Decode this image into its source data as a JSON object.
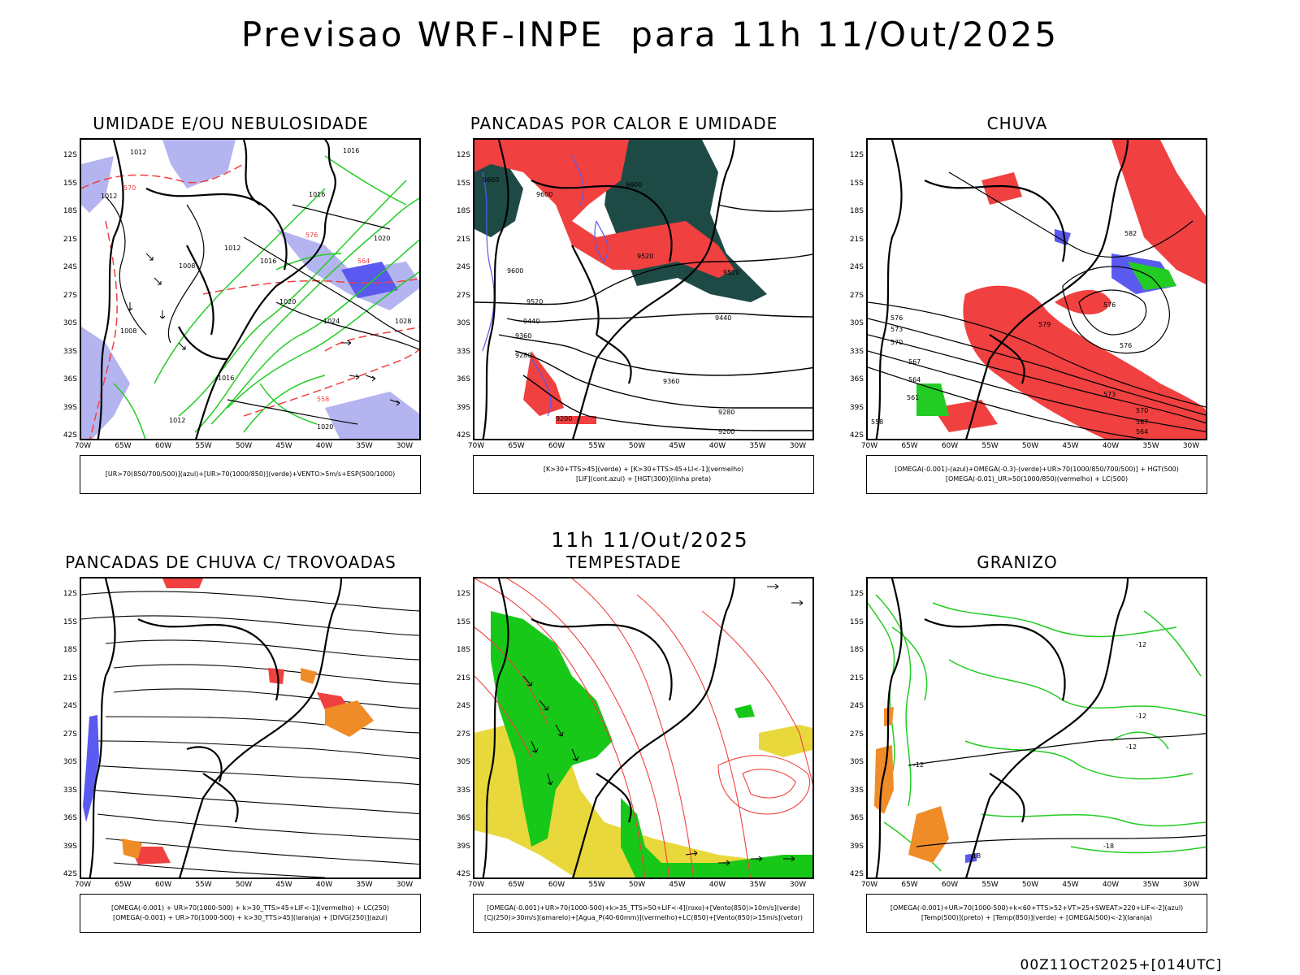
{
  "title": "Previsao WRF-INPE  para 11h 11/Out/2025",
  "mid_label": "11h 11/Out/2025",
  "footer": "00Z11OCT2025+[014UTC]",
  "axes": {
    "lat": [
      "12S",
      "15S",
      "18S",
      "21S",
      "24S",
      "27S",
      "30S",
      "33S",
      "36S",
      "39S",
      "42S"
    ],
    "lon": [
      "70W",
      "65W",
      "60W",
      "55W",
      "50W",
      "45W",
      "40W",
      "35W",
      "30W"
    ]
  },
  "panels": [
    {
      "id": "umidade",
      "title": "UMIDADE E/OU NEBULOSIDADE",
      "legend": [
        "[UR>70(850/700/500)](azul)+[UR>70(1000/850)](verde)+VENTO>5m/s+ESP(500/1000)"
      ],
      "labels": [
        "1012",
        "1016",
        "1012",
        "1016",
        "1012",
        "1016",
        "1020",
        "1008",
        "1008",
        "1016",
        "1020",
        "1024",
        "1028",
        "1020",
        "1012",
        "570",
        "576",
        "564",
        "558"
      ]
    },
    {
      "id": "pancadas-calor",
      "title": "PANCADAS POR CALOR E UMIDADE",
      "legend": [
        "[K>30+TTS>45](verde) + [K>30+TTS>45+LI<-1](vermelho)",
        "[LIF](cont.azul) + [HGT(300)](linha preta)"
      ],
      "labels": [
        "9600",
        "9600",
        "9600",
        "9520",
        "9520",
        "9600",
        "9520",
        "9440",
        "9440",
        "9360",
        "9280",
        "9360",
        "9280",
        "9200",
        "9200"
      ]
    },
    {
      "id": "chuva",
      "title": "CHUVA",
      "legend": [
        "[OMEGA(-0.001)-(azul)+OMEGA(-0.3)-(verde)+UR>70(1000/850/700/500)] + HGT(500)",
        "[OMEGA(-0.01)_UR>50(1000/850)(vermelho) + LC(500)"
      ],
      "labels": [
        "576",
        "573",
        "570",
        "567",
        "564",
        "579",
        "576",
        "576",
        "582",
        "573",
        "570",
        "567",
        "564",
        "561",
        "558"
      ]
    },
    {
      "id": "trovoadas",
      "title": "PANCADAS DE CHUVA C/ TROVOADAS",
      "legend": [
        "[OMEGA(-0.001) + UR>70(1000-500) + k>30_TTS>45+LIF<-1](vermelho) + LC(250)",
        "[OMEGA(-0.001) + UR>70(1000-500) + k>30_TTS>45](laranja) + [DIVG(250)](azul)"
      ],
      "labels": []
    },
    {
      "id": "tempestade",
      "title": "TEMPESTADE",
      "legend": [
        "[OMEGA(-0.001)+UR>70(1000-500)+k>35_TTS>50+LIF<-4](roxo)+[Vento(850)>10m/s](verde)",
        "[CJ(250)>30m/s](amarelo)+[Agua_P(40-60mm)](vermelho)+LC(850)+[Vento(850)>15m/s](vetor)"
      ],
      "labels": []
    },
    {
      "id": "granizo",
      "title": "GRANIZO",
      "legend": [
        "[OMEGA(-0.001)+UR>70(1000-500)+k<60+TTS>52+VT>25+SWEAT>220+LIF<-2](azul)",
        "[Temp(500)](preto) + [Temp(850)](verde) + [OMEGA(500)<-2](laranja)"
      ],
      "labels": [
        "-12",
        "-12",
        "-12",
        "-18",
        "-18",
        "-12"
      ]
    }
  ],
  "colors": {
    "blue": "#5a5af0",
    "lavender": "#b4b4f0",
    "green": "#22cc22",
    "red": "#f04040",
    "dark_teal": "#1e4a46",
    "orange": "#f08c28",
    "yellow": "#e8d83c",
    "mid_green": "#18c818",
    "contour": "#000000"
  }
}
